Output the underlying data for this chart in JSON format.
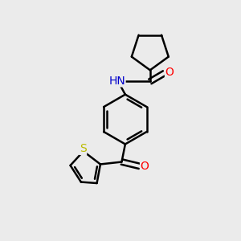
{
  "background_color": "#ebebeb",
  "bond_color": "#000000",
  "bond_width": 1.8,
  "atom_colors": {
    "O": "#ff0000",
    "N": "#0000cc",
    "S": "#cccc00",
    "C": "#000000"
  },
  "font_size": 10,
  "fig_width": 3.0,
  "fig_height": 3.0,
  "dpi": 100
}
